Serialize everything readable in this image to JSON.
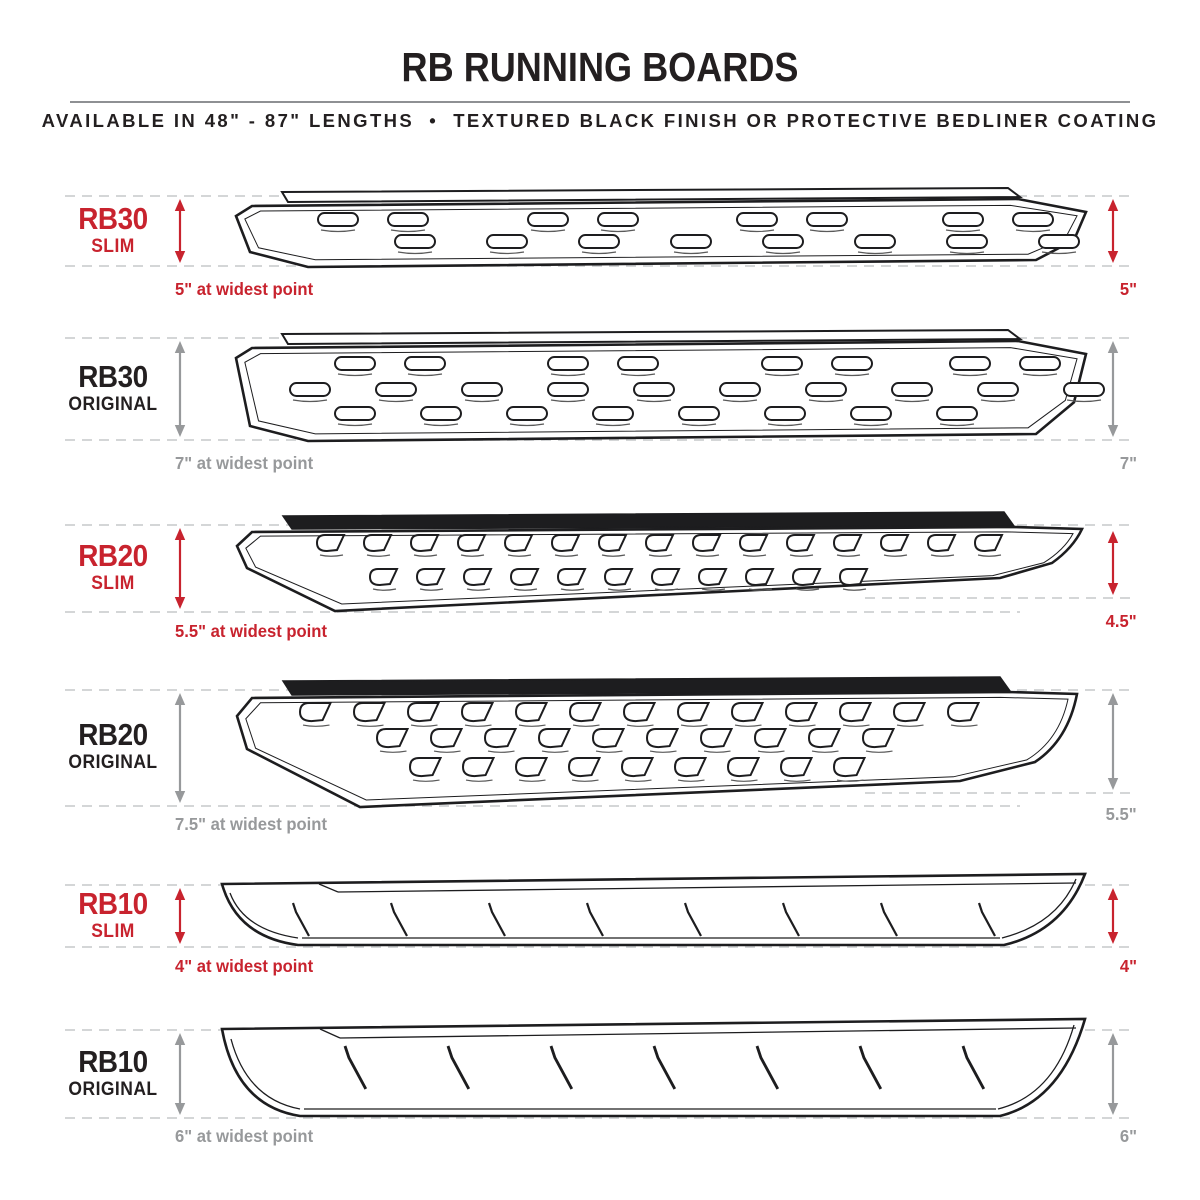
{
  "page": {
    "title": "RB RUNNING BOARDS",
    "subtitle": "AVAILABLE IN 48\" - 87\" LENGTHS  •  TEXTURED BLACK FINISH OR PROTECTIVE BEDLINER COATING"
  },
  "colors": {
    "accent_red": "#c8232e",
    "gray": "#97999b",
    "dark_text": "#231f20",
    "line": "#1d1d1f",
    "dash": "#c6c8ca"
  },
  "boards": [
    {
      "id": "rb30-slim",
      "model": "RB30",
      "variant": "SLIM",
      "accent": "red",
      "tread": "oval-slots",
      "slot_rows": 2,
      "widest_label": "5\" at widest point",
      "end_label": "5\""
    },
    {
      "id": "rb30-original",
      "model": "RB30",
      "variant": "ORIGINAL",
      "accent": "gray",
      "tread": "oval-slots",
      "slot_rows": 3,
      "widest_label": "7\" at widest point",
      "end_label": "7\""
    },
    {
      "id": "rb20-slim",
      "model": "RB20",
      "variant": "SLIM",
      "accent": "red",
      "tread": "d-slots",
      "slot_rows": 2,
      "widest_label": "5.5\" at widest point",
      "end_label": "4.5\""
    },
    {
      "id": "rb20-original",
      "model": "RB20",
      "variant": "ORIGINAL",
      "accent": "gray",
      "tread": "d-slots",
      "slot_rows": 3,
      "widest_label": "7.5\" at widest point",
      "end_label": "5.5\""
    },
    {
      "id": "rb10-slim",
      "model": "RB10",
      "variant": "SLIM",
      "accent": "red",
      "tread": "slash-marks",
      "slash_count": 8,
      "widest_label": "4\" at widest point",
      "end_label": "4\""
    },
    {
      "id": "rb10-original",
      "model": "RB10",
      "variant": "ORIGINAL",
      "accent": "gray",
      "tread": "slash-marks",
      "slash_count": 7,
      "widest_label": "6\" at widest point",
      "end_label": "6\""
    }
  ]
}
